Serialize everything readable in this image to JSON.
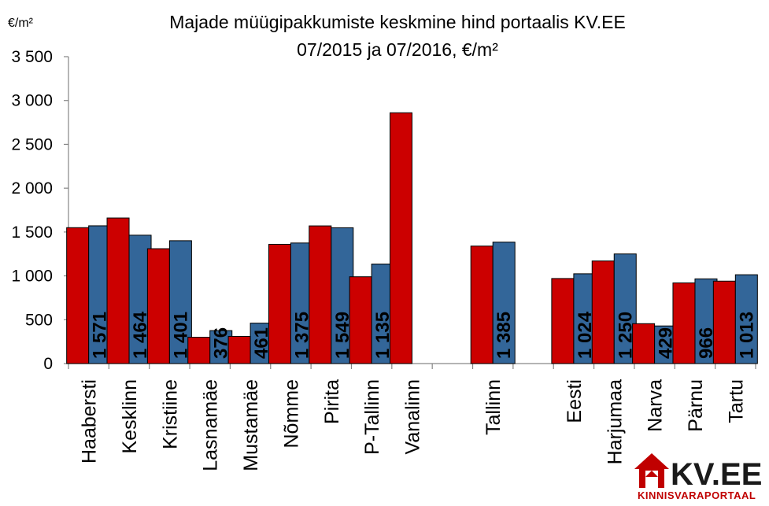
{
  "chart_data": {
    "type": "bar",
    "title_line1": "Majade müügipakkumiste keskmine hind portaalis KV.EE",
    "title_line2": "07/2015 ja 07/2016, €/m²",
    "unit_label": "€/m²",
    "ylim": [
      0,
      3500
    ],
    "yticks": [
      0,
      500,
      1000,
      1500,
      2000,
      2500,
      3000,
      3500
    ],
    "ytick_labels": [
      "0",
      "500",
      "1 000",
      "1 500",
      "2 000",
      "2 500",
      "3 000",
      "3 500"
    ],
    "grid": false,
    "legend": "none",
    "categories": [
      "Haabersti",
      "Kesklinn",
      "Kristiine",
      "Lasnamäe",
      "Mustamäe",
      "Nõmme",
      "Pirita",
      "P-Tallinn",
      "Vanalinn",
      "",
      "Tallinn",
      "",
      "Eesti",
      "Harjumaa",
      "Narva",
      "Pärnu",
      "Tartu"
    ],
    "series": [
      {
        "color": "#cc0000",
        "values": [
          1550,
          1660,
          1310,
          300,
          310,
          1360,
          1570,
          990,
          2860,
          null,
          1340,
          null,
          970,
          1170,
          455,
          920,
          940
        ]
      },
      {
        "color": "#336699",
        "values": [
          1571,
          1464,
          1401,
          376,
          461,
          1375,
          1549,
          1135,
          null,
          null,
          1385,
          null,
          1024,
          1250,
          429,
          966,
          1013
        ],
        "data_labels": [
          "1 571",
          "1 464",
          "1 401",
          "376",
          "461",
          "1 375",
          "1 549",
          "1 135",
          "",
          "",
          "1 385",
          "",
          "1 024",
          "1 250",
          "429",
          "966",
          "1 013"
        ]
      }
    ]
  },
  "logo": {
    "text": "KV.EE",
    "subtitle": "KINNISVARAPORTAAL",
    "accent_color": "#c00000"
  }
}
